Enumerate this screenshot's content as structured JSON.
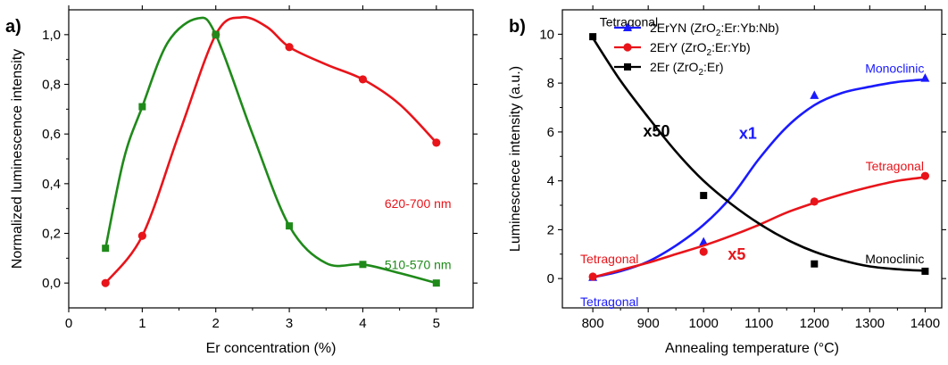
{
  "chart_data": [
    {
      "type": "line",
      "panel_label": "a)",
      "xlabel": "Er concentration (%)",
      "ylabel": "Normalized luminescence intensity",
      "xlim": [
        0,
        5.5
      ],
      "ylim": [
        -0.1,
        1.1
      ],
      "x_ticks": [
        0,
        1,
        2,
        3,
        4,
        5
      ],
      "x_tick_labels": [
        "0",
        "1",
        "2",
        "3",
        "4",
        "5"
      ],
      "y_ticks": [
        0.0,
        0.2,
        0.4,
        0.6,
        0.8,
        1.0
      ],
      "y_tick_labels": [
        "0,0",
        "0,2",
        "0,4",
        "0,6",
        "0,8",
        "1,0"
      ],
      "grid": false,
      "series": [
        {
          "name": "620-700 nm",
          "color": "#e8141a",
          "marker": "circle",
          "points": [
            [
              0.5,
              0.0
            ],
            [
              1.0,
              0.19
            ],
            [
              2.0,
              1.0
            ],
            [
              3.0,
              0.95
            ],
            [
              4.0,
              0.82
            ],
            [
              5.0,
              0.565
            ]
          ],
          "curve": [
            [
              0.5,
              0.0
            ],
            [
              1.0,
              0.19
            ],
            [
              1.5,
              0.6
            ],
            [
              2.0,
              1.0
            ],
            [
              2.35,
              1.07
            ],
            [
              2.7,
              1.03
            ],
            [
              3.0,
              0.95
            ],
            [
              3.5,
              0.88
            ],
            [
              4.0,
              0.82
            ],
            [
              4.5,
              0.72
            ],
            [
              5.0,
              0.565
            ]
          ]
        },
        {
          "name": "510-570 nm",
          "color": "#1f8a1a",
          "marker": "square",
          "points": [
            [
              0.5,
              0.14
            ],
            [
              1.0,
              0.71
            ],
            [
              2.0,
              1.0
            ],
            [
              3.0,
              0.23
            ],
            [
              4.0,
              0.075
            ],
            [
              5.0,
              0.0
            ]
          ],
          "curve": [
            [
              0.5,
              0.14
            ],
            [
              0.75,
              0.5
            ],
            [
              1.0,
              0.71
            ],
            [
              1.35,
              0.97
            ],
            [
              1.75,
              1.065
            ],
            [
              2.0,
              1.0
            ],
            [
              2.5,
              0.6
            ],
            [
              3.0,
              0.23
            ],
            [
              3.5,
              0.08
            ],
            [
              4.0,
              0.075
            ],
            [
              4.5,
              0.04
            ],
            [
              5.0,
              0.0
            ]
          ]
        }
      ],
      "annotations": [
        {
          "text": "620-700 nm",
          "x": 4.75,
          "y": 0.32,
          "color": "#e8141a"
        },
        {
          "text": "510-570 nm",
          "x": 4.75,
          "y": 0.075,
          "color": "#1f8a1a"
        }
      ]
    },
    {
      "type": "line",
      "panel_label": "b)",
      "xlabel": "Annealing temperature (°C)",
      "ylabel": "Luminescnece intensity (a.u.)",
      "xlim": [
        745,
        1430
      ],
      "ylim": [
        -1.2,
        11
      ],
      "x_ticks": [
        800,
        900,
        1000,
        1100,
        1200,
        1300,
        1400
      ],
      "y_ticks": [
        0,
        2,
        4,
        6,
        8,
        10
      ],
      "grid": false,
      "legend": {
        "placement": "top",
        "entries": [
          {
            "label": "2ErYN (ZrO",
            "sub": "2",
            "tail": ":Er:Yb:Nb)",
            "color": "#1a1aff",
            "marker": "triangle"
          },
          {
            "label": "2ErY (ZrO",
            "sub": "2",
            "tail": ":Er:Yb)",
            "color": "#e8141a",
            "marker": "circle"
          },
          {
            "label": "2Er (ZrO",
            "sub": "2",
            "tail": ":Er)",
            "color": "#000000",
            "marker": "square"
          }
        ]
      },
      "series": [
        {
          "name": "2ErYN (ZrO2:Er:Yb:Nb)",
          "color": "#1a1aff",
          "marker": "triangle",
          "points": [
            [
              800,
              0.05
            ],
            [
              1000,
              1.5
            ],
            [
              1200,
              7.5
            ],
            [
              1400,
              8.2
            ]
          ],
          "curve": [
            [
              800,
              0.05
            ],
            [
              850,
              0.3
            ],
            [
              900,
              0.7
            ],
            [
              950,
              1.35
            ],
            [
              1000,
              2.2
            ],
            [
              1050,
              3.35
            ],
            [
              1100,
              4.9
            ],
            [
              1150,
              6.2
            ],
            [
              1200,
              7.1
            ],
            [
              1250,
              7.6
            ],
            [
              1300,
              7.85
            ],
            [
              1350,
              8.05
            ],
            [
              1400,
              8.15
            ]
          ]
        },
        {
          "name": "2ErY (ZrO2:Er:Yb)",
          "color": "#e8141a",
          "marker": "circle",
          "points": [
            [
              800,
              0.08
            ],
            [
              1000,
              1.1
            ],
            [
              1200,
              3.15
            ],
            [
              1400,
              4.2
            ]
          ],
          "curve": [
            [
              800,
              0.05
            ],
            [
              850,
              0.35
            ],
            [
              900,
              0.65
            ],
            [
              950,
              1.0
            ],
            [
              1000,
              1.35
            ],
            [
              1050,
              1.75
            ],
            [
              1100,
              2.2
            ],
            [
              1150,
              2.7
            ],
            [
              1200,
              3.1
            ],
            [
              1250,
              3.45
            ],
            [
              1300,
              3.75
            ],
            [
              1350,
              4.0
            ],
            [
              1400,
              4.15
            ]
          ]
        },
        {
          "name": "2Er (ZrO2:Er)",
          "color": "#000000",
          "marker": "square",
          "points": [
            [
              800,
              9.9
            ],
            [
              1000,
              3.4
            ],
            [
              1200,
              0.6
            ],
            [
              1400,
              0.3
            ]
          ],
          "curve": [
            [
              800,
              9.85
            ],
            [
              850,
              8.1
            ],
            [
              900,
              6.6
            ],
            [
              950,
              5.2
            ],
            [
              1000,
              4.0
            ],
            [
              1050,
              3.05
            ],
            [
              1100,
              2.25
            ],
            [
              1150,
              1.6
            ],
            [
              1200,
              1.1
            ],
            [
              1250,
              0.75
            ],
            [
              1300,
              0.5
            ],
            [
              1350,
              0.38
            ],
            [
              1400,
              0.32
            ]
          ]
        }
      ],
      "annotations": [
        {
          "text": "Tetragonal",
          "x": 865,
          "y": 10.5,
          "color": "#000000",
          "weight": "normal"
        },
        {
          "text": "Monoclinic",
          "x": 1345,
          "y": 8.6,
          "color": "#1a1aff",
          "weight": "normal"
        },
        {
          "text": "x50",
          "x": 915,
          "y": 6.0,
          "color": "#000000",
          "weight": "bold"
        },
        {
          "text": "x1",
          "x": 1080,
          "y": 5.9,
          "color": "#1a1aff",
          "weight": "bold"
        },
        {
          "text": "x5",
          "x": 1060,
          "y": 0.95,
          "color": "#e8141a",
          "weight": "bold"
        },
        {
          "text": "Tetragonal",
          "x": 1345,
          "y": 4.6,
          "color": "#e8141a",
          "weight": "normal"
        },
        {
          "text": "Tetragonal",
          "x": 830,
          "y": 0.8,
          "color": "#e8141a",
          "weight": "normal"
        },
        {
          "text": "Tetragonal",
          "x": 830,
          "y": -0.95,
          "color": "#1a1aff",
          "weight": "normal"
        },
        {
          "text": "Monoclinic",
          "x": 1345,
          "y": 0.8,
          "color": "#000000",
          "weight": "normal"
        }
      ]
    }
  ]
}
